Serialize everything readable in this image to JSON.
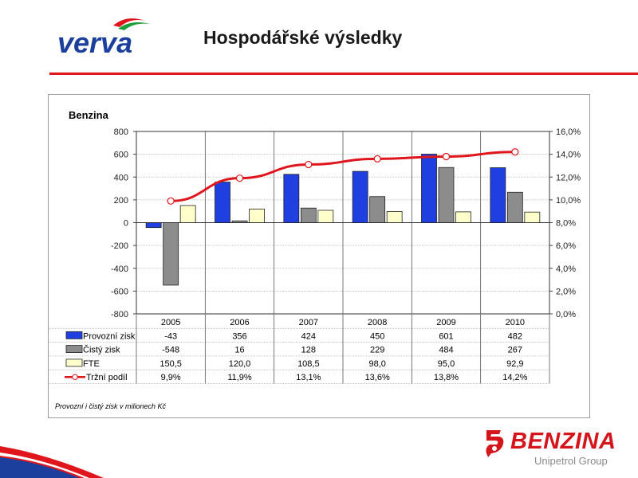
{
  "header": {
    "logo_text": "verva",
    "title": "Hospodářské výsledky"
  },
  "chart_data": {
    "type": "bar",
    "subtitle": "Benzina",
    "categories": [
      "2005",
      "2006",
      "2007",
      "2008",
      "2009",
      "2010"
    ],
    "series": [
      {
        "name": "Provozní zisk",
        "kind": "bar",
        "axis": "left",
        "color": "#1f3fe0",
        "values": [
          -43,
          356,
          424,
          450,
          601,
          482
        ],
        "labels": [
          "-43",
          "356",
          "424",
          "450",
          "601",
          "482"
        ]
      },
      {
        "name": "Čistý zisk",
        "kind": "bar",
        "axis": "left",
        "color": "#8c8c8c",
        "values": [
          -548,
          16,
          128,
          229,
          484,
          267
        ],
        "labels": [
          "-548",
          "16",
          "128",
          "229",
          "484",
          "267"
        ]
      },
      {
        "name": "FTE",
        "kind": "bar",
        "axis": "left",
        "color": "#ffffcc",
        "values": [
          150.5,
          120.0,
          108.5,
          98.0,
          95.0,
          92.9
        ],
        "labels": [
          "150,5",
          "120,0",
          "108,5",
          "98,0",
          "95,0",
          "92,9"
        ]
      },
      {
        "name": "Tržní podíl",
        "kind": "line",
        "axis": "right",
        "color": "#e0161d",
        "values": [
          9.9,
          11.9,
          13.1,
          13.6,
          13.8,
          14.2
        ],
        "labels": [
          "9,9%",
          "11,9%",
          "13,1%",
          "13,6%",
          "13,8%",
          "14,2%"
        ]
      }
    ],
    "ylim": [
      -800,
      800
    ],
    "y_ticks": [
      "800",
      "600",
      "400",
      "200",
      "0",
      "-200",
      "-400",
      "-600",
      "-800"
    ],
    "y2lim": [
      0,
      16
    ],
    "y2_ticks": [
      "16,0%",
      "14,0%",
      "12,0%",
      "10,0%",
      "8,0%",
      "6,0%",
      "4,0%",
      "2,0%",
      "0,0%"
    ],
    "grid": true,
    "legend": "data-table",
    "footnote": "Provozní i čistý zisk v milionech Kč"
  },
  "footer": {
    "brand": "BENZINA",
    "brand_sub": "Unipetrol Group"
  },
  "colors": {
    "accent_red": "#e0161d",
    "verva_blue": "#1c3f9e"
  }
}
